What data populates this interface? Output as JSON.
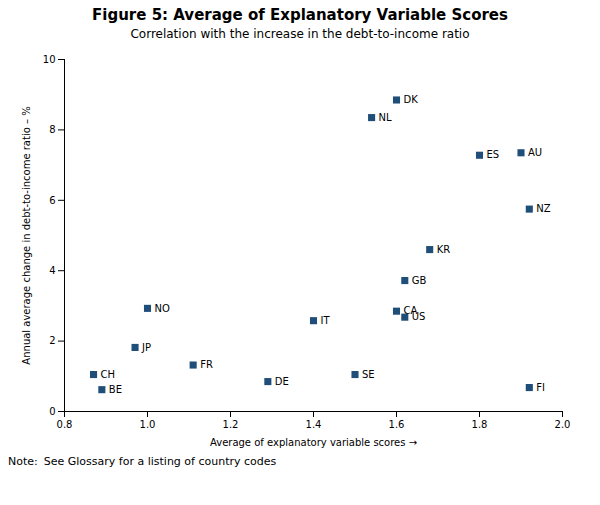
{
  "chart_data": {
    "type": "scatter",
    "title": "Figure 5: Average of Explanatory Variable Scores",
    "subtitle": "Correlation with the increase in the debt-to-income ratio",
    "xlabel": "Average of explanatory variable scores",
    "ylabel": "Annual average change in debt-to-income ratio – %",
    "annotations": [
      "Note:",
      "See Glossary for a listing of country codes"
    ],
    "xlim": [
      0.8,
      2.0
    ],
    "ylim": [
      0,
      10
    ],
    "xticks": [
      0.8,
      {
        "value": 1.0,
        "label": "1.0"
      },
      1.2,
      1.4,
      1.6,
      1.8,
      {
        "value": 2.0,
        "label": "2.0"
      }
    ],
    "yticks": [
      0,
      2,
      4,
      6,
      8,
      10
    ],
    "grid": false,
    "color": "#1f4e79",
    "marker": "square",
    "point_labels": [
      "CH",
      "BE",
      "JP",
      "NO",
      "FR",
      "DE",
      "IT",
      "SE",
      "NL",
      "DK",
      "CA",
      "US",
      "GB",
      "KR",
      "ES",
      "AU",
      "NZ",
      "FI"
    ],
    "x": [
      0.87,
      0.89,
      0.97,
      1.0,
      1.11,
      1.29,
      1.4,
      1.5,
      1.54,
      1.6,
      1.6,
      1.62,
      1.62,
      1.68,
      1.8,
      1.9,
      1.92,
      1.92
    ],
    "values": [
      1.05,
      0.62,
      1.82,
      2.93,
      1.32,
      0.85,
      2.58,
      1.05,
      8.35,
      8.85,
      2.85,
      2.68,
      3.72,
      4.6,
      7.28,
      7.35,
      5.75,
      0.68
    ]
  }
}
